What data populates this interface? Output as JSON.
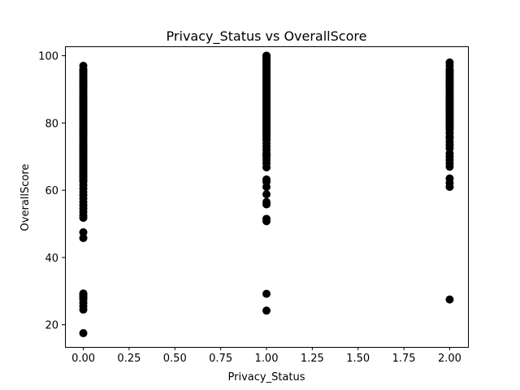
{
  "chart_data": {
    "type": "scatter",
    "title": "Privacy_Status vs OverallScore",
    "xlabel": "Privacy_Status",
    "ylabel": "OverallScore",
    "xlim": [
      -0.1,
      2.1
    ],
    "ylim": [
      13.4,
      102.8
    ],
    "x_ticks": [
      "0.00",
      "0.25",
      "0.50",
      "0.75",
      "1.00",
      "1.25",
      "1.50",
      "1.75",
      "2.00"
    ],
    "y_ticks": [
      "20",
      "40",
      "60",
      "80",
      "100"
    ],
    "grid": false,
    "marker_color": "#000000",
    "series": [
      {
        "x": [
          0,
          0,
          0,
          0,
          0,
          0,
          0,
          0,
          0,
          0,
          0,
          0,
          0,
          0,
          0,
          0,
          0,
          0,
          0,
          0,
          0,
          0,
          0,
          0,
          0,
          0,
          0,
          0,
          0,
          0,
          0,
          0,
          0,
          0,
          0,
          0,
          0,
          0,
          0,
          0,
          0,
          0,
          0,
          0,
          0,
          0,
          0,
          0,
          0,
          0,
          0,
          0,
          0,
          0,
          0,
          0,
          0,
          0,
          0,
          0,
          0,
          0,
          0,
          0,
          0,
          0,
          0,
          0,
          0,
          0,
          0,
          0,
          0,
          0,
          0,
          0,
          0,
          0,
          0,
          0,
          0,
          0,
          0,
          0,
          0,
          0,
          0,
          0,
          0,
          0,
          0,
          1,
          1,
          1,
          1,
          1,
          1,
          1,
          1,
          1,
          1,
          1,
          1,
          1,
          1,
          1,
          1,
          1,
          1,
          1,
          1,
          1,
          1,
          1,
          1,
          1,
          1,
          1,
          1,
          1,
          1,
          1,
          1,
          1,
          1,
          1,
          1,
          1,
          1,
          1,
          1,
          1,
          1,
          1,
          1,
          1,
          1,
          1,
          1,
          1,
          1,
          1,
          1,
          1,
          1,
          1,
          1,
          1,
          1,
          1,
          1,
          1,
          1,
          1,
          1,
          1,
          1,
          1,
          1,
          1,
          1,
          1,
          1,
          1,
          1,
          2,
          2,
          2,
          2,
          2,
          2,
          2,
          2,
          2,
          2,
          2,
          2,
          2,
          2,
          2,
          2,
          2,
          2,
          2,
          2,
          2,
          2,
          2,
          2,
          2,
          2,
          2,
          2,
          2,
          2,
          2,
          2,
          2,
          2,
          2,
          2,
          2,
          2,
          2,
          2,
          2,
          2,
          2,
          2,
          2,
          2,
          2,
          2,
          2,
          2,
          2,
          2,
          2,
          2
        ],
        "y": [
          17.5,
          24.5,
          25.5,
          26.5,
          27.5,
          28.0,
          28.5,
          29.0,
          29.3,
          45.8,
          47.5,
          51.8,
          52.5,
          53.5,
          54.5,
          55.5,
          56.5,
          57.5,
          58.5,
          59.5,
          60.5,
          61.5,
          62.5,
          63.0,
          63.5,
          64.0,
          64.5,
          65.0,
          65.5,
          66.0,
          66.5,
          67.0,
          67.5,
          68.0,
          68.5,
          69.0,
          69.5,
          70.0,
          70.5,
          71.0,
          71.5,
          72.0,
          72.5,
          73.0,
          73.5,
          74.0,
          74.5,
          75.0,
          75.5,
          76.0,
          76.5,
          77.0,
          77.5,
          78.0,
          78.5,
          79.0,
          79.5,
          80.0,
          80.5,
          81.0,
          81.5,
          82.0,
          82.5,
          83.0,
          83.5,
          84.0,
          84.5,
          85.0,
          85.5,
          86.0,
          86.5,
          87.0,
          87.5,
          88.0,
          88.5,
          89.0,
          89.5,
          90.0,
          90.5,
          91.0,
          91.5,
          92.0,
          92.5,
          93.0,
          93.5,
          94.0,
          94.5,
          95.0,
          95.5,
          96.0,
          97.0,
          24.2,
          29.2,
          50.8,
          51.5,
          55.8,
          56.5,
          58.8,
          61.0,
          62.5,
          63.2,
          66.8,
          68.0,
          69.0,
          70.0,
          70.5,
          71.0,
          72.0,
          73.0,
          74.0,
          75.0,
          75.5,
          76.0,
          76.5,
          77.0,
          77.5,
          78.0,
          78.5,
          79.0,
          79.5,
          80.0,
          80.5,
          81.0,
          81.5,
          82.0,
          82.5,
          83.0,
          83.5,
          84.0,
          84.5,
          85.0,
          85.5,
          86.0,
          86.5,
          87.0,
          87.5,
          88.0,
          88.5,
          89.0,
          89.5,
          90.0,
          90.5,
          91.0,
          91.5,
          92.0,
          92.5,
          93.0,
          93.5,
          94.0,
          94.5,
          95.0,
          95.5,
          96.0,
          96.5,
          97.0,
          97.5,
          98.0,
          98.5,
          99.0,
          99.3,
          99.6,
          100.0,
          99.8,
          99.5,
          100.0,
          27.5,
          61.0,
          62.2,
          63.5,
          67.0,
          68.0,
          69.0,
          70.0,
          71.0,
          72.5,
          73.5,
          74.5,
          75.5,
          76.0,
          77.0,
          78.0,
          78.5,
          79.0,
          79.5,
          80.0,
          80.5,
          81.0,
          81.5,
          82.0,
          82.5,
          83.0,
          83.5,
          84.0,
          84.5,
          85.0,
          85.5,
          86.0,
          86.5,
          87.0,
          87.5,
          88.0,
          88.5,
          89.0,
          89.5,
          90.0,
          90.5,
          91.0,
          91.5,
          92.0,
          92.5,
          93.0,
          93.5,
          94.0,
          94.5,
          95.0,
          95.5,
          96.0,
          97.0,
          98.0
        ]
      }
    ]
  }
}
